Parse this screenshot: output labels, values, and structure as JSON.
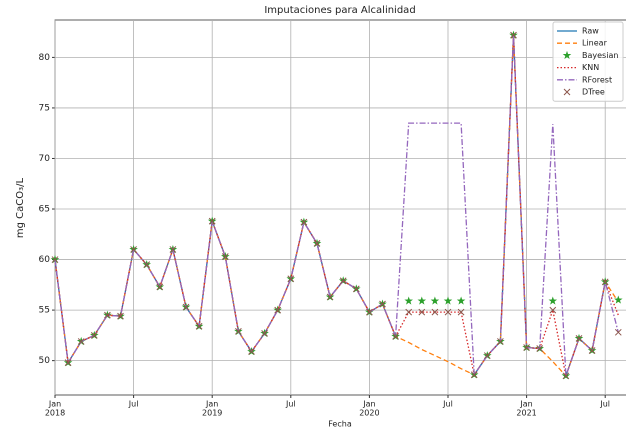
{
  "chart_data": {
    "type": "line",
    "title": "Imputaciones para Alcalinidad",
    "x_label": "Fecha",
    "y_label": "mg CaCO₃/L",
    "x": [
      "2018-01",
      "2018-02",
      "2018-03",
      "2018-04",
      "2018-05",
      "2018-06",
      "2018-07",
      "2018-08",
      "2018-09",
      "2018-10",
      "2018-11",
      "2018-12",
      "2019-01",
      "2019-02",
      "2019-03",
      "2019-04",
      "2019-05",
      "2019-06",
      "2019-07",
      "2019-08",
      "2019-09",
      "2019-10",
      "2019-11",
      "2019-12",
      "2020-01",
      "2020-02",
      "2020-03",
      "2020-04",
      "2020-05",
      "2020-06",
      "2020-07",
      "2020-08",
      "2020-09",
      "2020-10",
      "2020-11",
      "2020-12",
      "2021-01",
      "2021-02",
      "2021-03",
      "2021-04",
      "2021-05",
      "2021-06",
      "2021-07",
      "2021-08"
    ],
    "xticks": [
      {
        "value": "2018-01",
        "label": "Jan",
        "year": "2018"
      },
      {
        "value": "2018-07",
        "label": "Jul"
      },
      {
        "value": "2019-01",
        "label": "Jan",
        "year": "2019"
      },
      {
        "value": "2019-07",
        "label": "Jul"
      },
      {
        "value": "2020-01",
        "label": "Jan",
        "year": "2020"
      },
      {
        "value": "2020-07",
        "label": "Jul"
      },
      {
        "value": "2021-01",
        "label": "Jan",
        "year": "2021"
      },
      {
        "value": "2021-07",
        "label": "Jul"
      }
    ],
    "ylim": [
      46.6,
      83.7
    ],
    "yticks": [
      50,
      55,
      60,
      65,
      70,
      75,
      80
    ],
    "grid": true,
    "legend": "upper right",
    "series": [
      {
        "name": "Raw",
        "color": "#1f77b4",
        "dash": "solid",
        "marker": null,
        "values": [
          60,
          49.8,
          51.9,
          52.5,
          54.5,
          54.4,
          61,
          59.5,
          57.3,
          61,
          55.3,
          53.4,
          63.8,
          60.3,
          52.9,
          50.9,
          52.7,
          55,
          58.1,
          63.7,
          61.6,
          56.3,
          57.9,
          57.1,
          54.8,
          55.6,
          52.4,
          null,
          null,
          null,
          null,
          null,
          48.6,
          50.5,
          51.9,
          82.2,
          51.3,
          51.2,
          null,
          48.5,
          52.2,
          51,
          57.8,
          null
        ]
      },
      {
        "name": "Linear",
        "color": "#ff7f0e",
        "dash": "dashed",
        "marker": null,
        "values": [
          60,
          49.8,
          51.9,
          52.5,
          54.5,
          54.4,
          61,
          59.5,
          57.3,
          61,
          55.3,
          53.4,
          63.8,
          60.3,
          52.9,
          50.9,
          52.7,
          55,
          58.1,
          63.7,
          61.6,
          56.3,
          57.9,
          57.1,
          54.8,
          55.6,
          52.4,
          51.8,
          51.1,
          50.5,
          49.9,
          49.2,
          48.6,
          50.5,
          51.9,
          82.2,
          51.3,
          51.2,
          49.9,
          48.5,
          52.2,
          51,
          57.8,
          55.8
        ]
      },
      {
        "name": "Bayesian",
        "color": "#2ca02c",
        "dash": null,
        "marker": "star",
        "values": [
          60,
          49.8,
          51.9,
          52.5,
          54.5,
          54.4,
          61,
          59.5,
          57.3,
          61,
          55.3,
          53.4,
          63.8,
          60.3,
          52.9,
          50.9,
          52.7,
          55,
          58.1,
          63.7,
          61.6,
          56.3,
          57.9,
          57.1,
          54.8,
          55.6,
          52.4,
          55.9,
          55.9,
          55.9,
          55.9,
          55.9,
          48.6,
          50.5,
          51.9,
          82.2,
          51.3,
          51.2,
          55.9,
          48.5,
          52.2,
          51,
          57.8,
          56
        ]
      },
      {
        "name": "KNN",
        "color": "#d62728",
        "dash": "dotted",
        "marker": null,
        "values": [
          60,
          49.8,
          51.9,
          52.5,
          54.5,
          54.4,
          61,
          59.5,
          57.3,
          61,
          55.3,
          53.4,
          63.8,
          60.3,
          52.9,
          50.9,
          52.7,
          55,
          58.1,
          63.7,
          61.6,
          56.3,
          57.9,
          57.1,
          54.8,
          55.6,
          52.4,
          54.8,
          54.8,
          54.8,
          54.8,
          54.8,
          48.6,
          50.5,
          51.9,
          82.2,
          51.3,
          51.2,
          55,
          48.5,
          52.2,
          51,
          57.8,
          54.5
        ]
      },
      {
        "name": "RForest",
        "color": "#9467bd",
        "dash": "dashdot",
        "marker": null,
        "values": [
          60,
          49.8,
          51.9,
          52.5,
          54.5,
          54.4,
          61,
          59.5,
          57.3,
          61,
          55.3,
          53.4,
          63.8,
          60.3,
          52.9,
          50.9,
          52.7,
          55,
          58.1,
          63.7,
          61.6,
          56.3,
          57.9,
          57.1,
          54.8,
          55.6,
          52.4,
          73.5,
          73.5,
          73.5,
          73.5,
          73.5,
          48.6,
          50.5,
          51.9,
          82.2,
          51.3,
          51.2,
          73.4,
          48.5,
          52.2,
          51,
          57.8,
          52.8
        ]
      },
      {
        "name": "DTree",
        "color": "#8c564b",
        "dash": null,
        "marker": "x",
        "values": [
          60,
          49.8,
          51.9,
          52.5,
          54.5,
          54.4,
          61,
          59.5,
          57.3,
          61,
          55.3,
          53.4,
          63.8,
          60.3,
          52.9,
          50.9,
          52.7,
          55,
          58.1,
          63.7,
          61.6,
          56.3,
          57.9,
          57.1,
          54.8,
          55.6,
          52.4,
          54.8,
          54.8,
          54.8,
          54.8,
          54.8,
          48.6,
          50.5,
          51.9,
          82.2,
          51.3,
          51.2,
          55,
          48.5,
          52.2,
          51,
          57.8,
          52.8
        ]
      }
    ]
  }
}
